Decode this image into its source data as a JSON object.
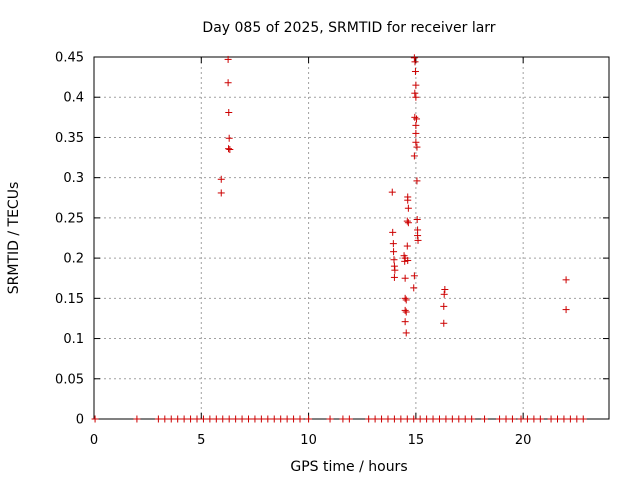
{
  "chart_data": {
    "type": "scatter",
    "title": "Day 085 of 2025, SRMTID for receiver larr",
    "xlabel": "GPS time / hours",
    "ylabel": "SRMTID / TECUs",
    "xlim": [
      0,
      24
    ],
    "ylim": [
      0,
      0.45
    ],
    "xticks": [
      0,
      5,
      10,
      15,
      20
    ],
    "xtick_labels": [
      "0",
      "5",
      "10",
      "15",
      "20"
    ],
    "yticks": [
      0,
      0.05,
      0.1,
      0.15,
      0.2,
      0.25,
      0.3,
      0.35,
      0.4,
      0.45
    ],
    "ytick_labels": [
      "0",
      "0.05",
      "0.1",
      "0.15",
      "0.2",
      "0.25",
      "0.3",
      "0.35",
      "0.4",
      "0.45"
    ],
    "grid": true,
    "marker": "+",
    "color": "#cc0000",
    "series": [
      {
        "name": "SRMTID",
        "points": [
          [
            5.93,
            0.298
          ],
          [
            5.93,
            0.281
          ],
          [
            6.25,
            0.447
          ],
          [
            6.25,
            0.418
          ],
          [
            6.28,
            0.381
          ],
          [
            6.3,
            0.349
          ],
          [
            6.27,
            0.336
          ],
          [
            6.33,
            0.335
          ],
          [
            13.9,
            0.282
          ],
          [
            13.92,
            0.232
          ],
          [
            13.95,
            0.218
          ],
          [
            13.96,
            0.208
          ],
          [
            13.98,
            0.198
          ],
          [
            14.0,
            0.19
          ],
          [
            14.02,
            0.185
          ],
          [
            14.0,
            0.176
          ],
          [
            14.45,
            0.203
          ],
          [
            14.5,
            0.2
          ],
          [
            14.48,
            0.196
          ],
          [
            14.5,
            0.175
          ],
          [
            14.5,
            0.15
          ],
          [
            14.55,
            0.148
          ],
          [
            14.5,
            0.135
          ],
          [
            14.55,
            0.133
          ],
          [
            14.5,
            0.121
          ],
          [
            14.55,
            0.107
          ],
          [
            14.62,
            0.276
          ],
          [
            14.62,
            0.272
          ],
          [
            14.65,
            0.262
          ],
          [
            14.6,
            0.246
          ],
          [
            14.65,
            0.244
          ],
          [
            14.6,
            0.215
          ],
          [
            14.62,
            0.197
          ],
          [
            14.93,
            0.449
          ],
          [
            14.96,
            0.444
          ],
          [
            14.98,
            0.432
          ],
          [
            15.0,
            0.415
          ],
          [
            14.95,
            0.405
          ],
          [
            15.0,
            0.4
          ],
          [
            14.95,
            0.375
          ],
          [
            15.03,
            0.373
          ],
          [
            15.0,
            0.365
          ],
          [
            15.0,
            0.355
          ],
          [
            15.0,
            0.344
          ],
          [
            15.05,
            0.338
          ],
          [
            14.93,
            0.327
          ],
          [
            15.05,
            0.296
          ],
          [
            15.06,
            0.248
          ],
          [
            15.08,
            0.235
          ],
          [
            15.08,
            0.228
          ],
          [
            15.1,
            0.222
          ],
          [
            14.93,
            0.178
          ],
          [
            14.9,
            0.163
          ],
          [
            16.35,
            0.161
          ],
          [
            16.32,
            0.155
          ],
          [
            16.3,
            0.14
          ],
          [
            16.3,
            0.119
          ],
          [
            22.0,
            0.173
          ],
          [
            22.0,
            0.136
          ],
          [
            0.05,
            0
          ],
          [
            2.0,
            0
          ],
          [
            3.0,
            0
          ],
          [
            3.3,
            0
          ],
          [
            3.6,
            0
          ],
          [
            3.9,
            0
          ],
          [
            4.2,
            0
          ],
          [
            4.5,
            0
          ],
          [
            4.8,
            0
          ],
          [
            5.1,
            0
          ],
          [
            5.4,
            0
          ],
          [
            5.7,
            0
          ],
          [
            6.0,
            0
          ],
          [
            6.3,
            0
          ],
          [
            6.6,
            0
          ],
          [
            6.9,
            0
          ],
          [
            7.2,
            0
          ],
          [
            7.5,
            0
          ],
          [
            7.8,
            0
          ],
          [
            8.1,
            0
          ],
          [
            8.4,
            0
          ],
          [
            8.7,
            0
          ],
          [
            9.0,
            0
          ],
          [
            9.3,
            0
          ],
          [
            9.6,
            0
          ],
          [
            10.0,
            0
          ],
          [
            11.0,
            0
          ],
          [
            11.6,
            0
          ],
          [
            11.9,
            0
          ],
          [
            12.8,
            0
          ],
          [
            13.1,
            0
          ],
          [
            13.4,
            0
          ],
          [
            13.7,
            0
          ],
          [
            14.0,
            0
          ],
          [
            14.3,
            0
          ],
          [
            14.6,
            0
          ],
          [
            14.9,
            0
          ],
          [
            15.2,
            0
          ],
          [
            15.5,
            0
          ],
          [
            15.8,
            0
          ],
          [
            16.1,
            0
          ],
          [
            16.4,
            0
          ],
          [
            16.7,
            0
          ],
          [
            17.0,
            0
          ],
          [
            17.3,
            0
          ],
          [
            17.6,
            0
          ],
          [
            18.2,
            0
          ],
          [
            18.9,
            0
          ],
          [
            19.2,
            0
          ],
          [
            19.5,
            0
          ],
          [
            19.9,
            0
          ],
          [
            20.2,
            0
          ],
          [
            20.5,
            0
          ],
          [
            20.8,
            0
          ],
          [
            21.3,
            0
          ],
          [
            21.6,
            0
          ],
          [
            21.9,
            0
          ],
          [
            22.2,
            0
          ],
          [
            22.5,
            0
          ],
          [
            22.8,
            0
          ]
        ]
      }
    ]
  }
}
